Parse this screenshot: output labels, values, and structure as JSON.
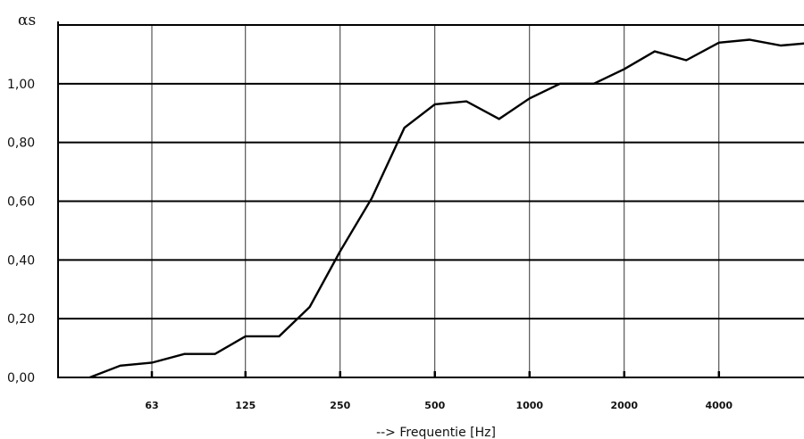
{
  "chart_data": {
    "type": "line",
    "title": "",
    "ylabel": "αs",
    "xlabel": "--> Frequentie [Hz]",
    "x_scale": "log2",
    "ylim": [
      0,
      1.2
    ],
    "yticks": [
      "0,00",
      "0,20",
      "0,40",
      "0,60",
      "0,80",
      "1,00"
    ],
    "xticks": [
      "63",
      "125",
      "250",
      "500",
      "1000",
      "2000",
      "4000"
    ],
    "grid": true,
    "series": [
      {
        "x": [
          40,
          50,
          63,
          80,
          100,
          125,
          160,
          200,
          250,
          315,
          400,
          500,
          630,
          800,
          1000,
          1250,
          1600,
          2000,
          2500,
          3150,
          4000,
          5000,
          6300,
          8000
        ],
        "y": [
          0.0,
          0.04,
          0.05,
          0.08,
          0.08,
          0.14,
          0.14,
          0.24,
          0.43,
          0.61,
          0.85,
          0.93,
          0.94,
          0.88,
          0.95,
          1.0,
          1.0,
          1.05,
          1.11,
          1.08,
          1.14,
          1.15,
          1.13,
          1.14
        ]
      }
    ]
  }
}
